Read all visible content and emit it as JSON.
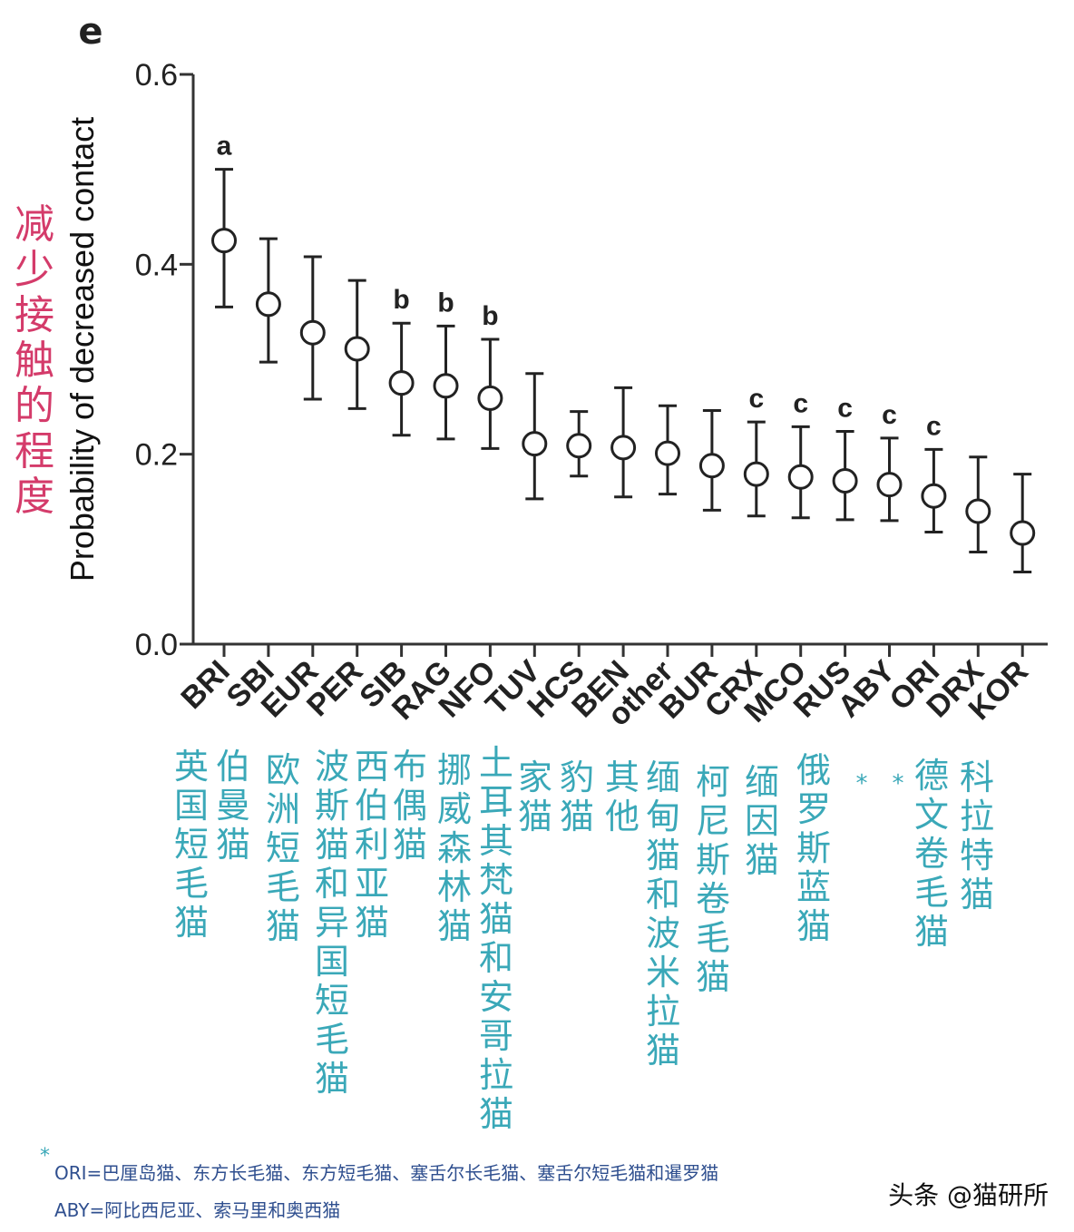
{
  "panel_letter": "e",
  "ylabel_cn": "减少接触的程度",
  "chart_data": {
    "type": "scatter",
    "title": "",
    "xlabel": "",
    "ylabel": "Probability of decreased contact",
    "ylim": [
      0.0,
      0.6
    ],
    "yticks": [
      "0.0",
      "0.2",
      "0.4",
      "0.6"
    ],
    "grid": false,
    "legend": "none",
    "point_style": "open-circle-with-error-bars",
    "categories": [
      "BRI",
      "SBI",
      "EUR",
      "PER",
      "SIB",
      "RAG",
      "NFO",
      "TUV",
      "HCS",
      "BEN",
      "other",
      "BUR",
      "CRX",
      "MCO",
      "RUS",
      "ABY",
      "ORI",
      "DRX",
      "KOR"
    ],
    "values": [
      0.425,
      0.358,
      0.328,
      0.311,
      0.275,
      0.272,
      0.259,
      0.211,
      0.209,
      0.207,
      0.201,
      0.188,
      0.179,
      0.176,
      0.172,
      0.168,
      0.156,
      0.14,
      0.117
    ],
    "error_low": [
      0.355,
      0.297,
      0.258,
      0.248,
      0.22,
      0.216,
      0.206,
      0.153,
      0.177,
      0.155,
      0.158,
      0.141,
      0.135,
      0.133,
      0.131,
      0.13,
      0.118,
      0.097,
      0.076
    ],
    "error_high": [
      0.5,
      0.427,
      0.408,
      0.383,
      0.338,
      0.335,
      0.321,
      0.285,
      0.245,
      0.27,
      0.251,
      0.246,
      0.234,
      0.229,
      0.224,
      0.217,
      0.205,
      0.197,
      0.179
    ],
    "significance": [
      "a",
      "",
      "",
      "",
      "b",
      "b",
      "b",
      "",
      "",
      "",
      "",
      "",
      "c",
      "c",
      "c",
      "c",
      "c",
      "",
      ""
    ],
    "chinese_labels": [
      "英国短毛猫",
      "伯曼猫",
      "欧洲短毛猫",
      "波斯猫和异国短毛猫",
      "西伯利亚猫",
      "布偶猫",
      "挪威森林猫",
      "土耳其梵猫和安哥拉猫",
      "家猫",
      "豹猫",
      "其他",
      "缅甸猫和波米拉猫",
      "柯尼斯卷毛猫",
      "缅因猫",
      "俄罗斯蓝猫",
      "*",
      "*",
      "德文卷毛猫",
      "科拉特猫"
    ],
    "colors": {
      "marker": "#222222",
      "axis": "#333333",
      "cn_label": "#3aa8b8",
      "cn_ylabel": "#d43b6a",
      "footnote": "#2f4f8f"
    }
  },
  "footnotes": {
    "star": "*",
    "ori": "ORI=巴厘岛猫、东方长毛猫、东方短毛猫、塞舌尔长毛猫、塞舌尔短毛猫和暹罗猫",
    "aby": "ABY=阿比西尼亚、索马里和奥西猫"
  },
  "watermark": "头条 @猫研所"
}
